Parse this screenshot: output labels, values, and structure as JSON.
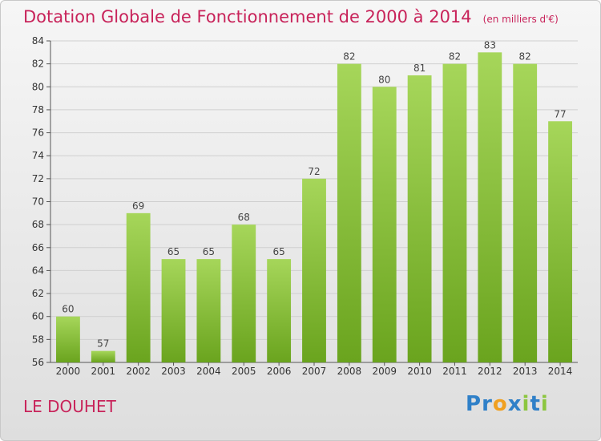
{
  "header": {
    "title": "Dotation Globale de Fonctionnement de 2000 à 2014",
    "unit": "(en milliers d'€)"
  },
  "footer": {
    "commune": "LE DOUHET",
    "logo_letters": [
      {
        "ch": "P",
        "color": "#2f80c8"
      },
      {
        "ch": "r",
        "color": "#2f80c8"
      },
      {
        "ch": "o",
        "color": "#f0a020"
      },
      {
        "ch": "x",
        "color": "#2f80c8"
      },
      {
        "ch": "i",
        "color": "#8cc63f"
      },
      {
        "ch": "t",
        "color": "#2f80c8"
      },
      {
        "ch": "i",
        "color": "#8cc63f"
      }
    ]
  },
  "colors": {
    "bar_top": "#a6d65a",
    "bar_bottom": "#6aa41e",
    "grid": "#cfcfcf",
    "title": "#c8235a"
  },
  "chart_data": {
    "type": "bar",
    "title": "Dotation Globale de Fonctionnement de 2000 à 2014",
    "subtitle": "(en milliers d'€)",
    "xlabel": "",
    "ylabel": "",
    "categories": [
      "2000",
      "2001",
      "2002",
      "2003",
      "2004",
      "2005",
      "2006",
      "2007",
      "2008",
      "2009",
      "2010",
      "2011",
      "2012",
      "2013",
      "2014"
    ],
    "values": [
      60,
      57,
      69,
      65,
      65,
      68,
      65,
      72,
      82,
      80,
      81,
      82,
      83,
      82,
      77
    ],
    "ylim": [
      56,
      84
    ],
    "yticks": [
      56,
      58,
      60,
      62,
      64,
      66,
      68,
      70,
      72,
      74,
      76,
      78,
      80,
      82,
      84
    ],
    "grid": true,
    "legend": "none"
  }
}
